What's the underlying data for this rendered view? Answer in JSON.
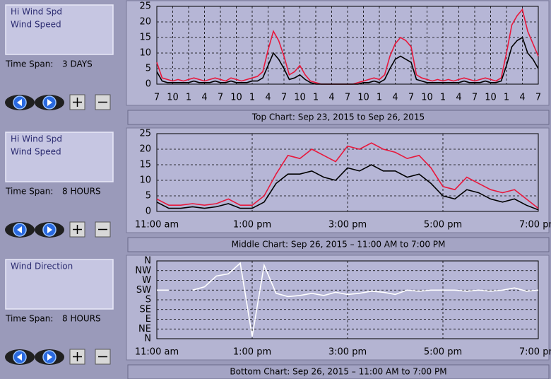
{
  "chart_data": [
    {
      "type": "line",
      "caption": "Top Chart:  Sep 23, 2015  to  Sep 26, 2015",
      "grid": true,
      "x": [
        0,
        1,
        2,
        3,
        4,
        5,
        6,
        7,
        8,
        9,
        10,
        11,
        12,
        13,
        14,
        15,
        16,
        17,
        18,
        19,
        20,
        21,
        22,
        23,
        24,
        25,
        26,
        27,
        28,
        29,
        30,
        31,
        32,
        33,
        34,
        35,
        36,
        37,
        38,
        39,
        40,
        41,
        42,
        43,
        44,
        45,
        46,
        47,
        48,
        49,
        50,
        51,
        52,
        53,
        54,
        55,
        56,
        57,
        58,
        59,
        60,
        61,
        62,
        63,
        64,
        65,
        66,
        67,
        68,
        69,
        70,
        71,
        72
      ],
      "series": [
        {
          "name": "Hi Wind Spd",
          "color": "#e8183c",
          "values": [
            7,
            2,
            1.5,
            1,
            1.5,
            1,
            1.5,
            2,
            1.5,
            1,
            1.5,
            2,
            1.5,
            1,
            2,
            1.5,
            1,
            1.5,
            2,
            2.5,
            4,
            11,
            17,
            14,
            9,
            3,
            4,
            6,
            3,
            1,
            0.5,
            0,
            0,
            0,
            0,
            0,
            0,
            0,
            0.5,
            1,
            1.5,
            2,
            1.5,
            3,
            9,
            13,
            15,
            14,
            12,
            3,
            2,
            1.5,
            1,
            1.5,
            1,
            1.5,
            1,
            1.5,
            2,
            1.5,
            1,
            1.5,
            2,
            1.5,
            1,
            2,
            10,
            19,
            22,
            24,
            17,
            13,
            9
          ]
        },
        {
          "name": "Wind Speed",
          "color": "#000000",
          "values": [
            4,
            1,
            0.5,
            0.5,
            0.5,
            0.5,
            0.5,
            1,
            0.5,
            0.5,
            0.5,
            1,
            0.5,
            0.5,
            1,
            0.5,
            0.5,
            0.5,
            1,
            1,
            2,
            6,
            10,
            8,
            5,
            1.5,
            2,
            3,
            1.5,
            0.5,
            0,
            0,
            0,
            0,
            0,
            0,
            0,
            0,
            0,
            0.5,
            0.5,
            1,
            0.5,
            1.5,
            5,
            8,
            9,
            8,
            7,
            1.5,
            1,
            0.5,
            0.5,
            0.5,
            0.5,
            0.5,
            0.5,
            0.5,
            1,
            0.5,
            0.5,
            0.5,
            1,
            0.5,
            0.5,
            1,
            6,
            12,
            14,
            15,
            10,
            8,
            5
          ]
        }
      ],
      "xlim": [
        0,
        72
      ],
      "xticks": [
        {
          "value": 0,
          "label": "7"
        },
        {
          "value": 3,
          "label": "10"
        },
        {
          "value": 6,
          "label": "1"
        },
        {
          "value": 9,
          "label": "4"
        },
        {
          "value": 12,
          "label": "7"
        },
        {
          "value": 15,
          "label": "10"
        },
        {
          "value": 18,
          "label": "1"
        },
        {
          "value": 21,
          "label": "4"
        },
        {
          "value": 24,
          "label": "7"
        },
        {
          "value": 27,
          "label": "10"
        },
        {
          "value": 30,
          "label": "1"
        },
        {
          "value": 33,
          "label": "4"
        },
        {
          "value": 36,
          "label": "7"
        },
        {
          "value": 39,
          "label": "10"
        },
        {
          "value": 42,
          "label": "1"
        },
        {
          "value": 45,
          "label": "4"
        },
        {
          "value": 48,
          "label": "7"
        },
        {
          "value": 51,
          "label": "10"
        },
        {
          "value": 54,
          "label": "1"
        },
        {
          "value": 57,
          "label": "4"
        },
        {
          "value": 60,
          "label": "7"
        },
        {
          "value": 63,
          "label": "10"
        },
        {
          "value": 66,
          "label": "1"
        },
        {
          "value": 69,
          "label": "4"
        },
        {
          "value": 72,
          "label": "7"
        }
      ],
      "ylim": [
        0,
        25
      ],
      "yticks": [
        0,
        5,
        10,
        15,
        20,
        25
      ]
    },
    {
      "type": "line",
      "caption": "Middle Chart:  Sep 26, 2015 – 11:00 AM  to  7:00 PM",
      "grid": true,
      "x": [
        11,
        11.25,
        11.5,
        11.75,
        12,
        12.25,
        12.5,
        12.75,
        13,
        13.25,
        13.5,
        13.75,
        14,
        14.25,
        14.5,
        14.75,
        15,
        15.25,
        15.5,
        15.75,
        16,
        16.25,
        16.5,
        16.75,
        17,
        17.25,
        17.5,
        17.75,
        18,
        18.25,
        18.5,
        18.75,
        19
      ],
      "series": [
        {
          "name": "Hi Wind Spd",
          "color": "#e8183c",
          "values": [
            4,
            2,
            2,
            2.5,
            2,
            2.5,
            4,
            2,
            2,
            5,
            12,
            18,
            17,
            20,
            18,
            16,
            21,
            20,
            22,
            20,
            19,
            17,
            18,
            14,
            8,
            7,
            11,
            9,
            7,
            6,
            7,
            4,
            1
          ]
        },
        {
          "name": "Wind Speed",
          "color": "#000000",
          "values": [
            3,
            1,
            1,
            1.5,
            1,
            1.5,
            2.5,
            1,
            1,
            3,
            9,
            12,
            12,
            13,
            11,
            10,
            14,
            13,
            15,
            13,
            13,
            11,
            12,
            9,
            5,
            4,
            7,
            6,
            4,
            3,
            4,
            2,
            0.5
          ]
        }
      ],
      "xlim": [
        11,
        19
      ],
      "xticks": [
        {
          "value": 11,
          "label": "11:00 am"
        },
        {
          "value": 13,
          "label": "1:00 pm"
        },
        {
          "value": 15,
          "label": "3:00 pm"
        },
        {
          "value": 17,
          "label": "5:00 pm"
        },
        {
          "value": 19,
          "label": "7:00 pm"
        }
      ],
      "ylim": [
        0,
        25
      ],
      "yticks": [
        0,
        5,
        10,
        15,
        20,
        25
      ]
    },
    {
      "type": "line",
      "caption": "Bottom Chart:  Sep 26, 2015 – 11:00 AM  to  7:00 PM",
      "grid": true,
      "x": [
        11,
        11.25,
        11.5,
        11.75,
        12,
        12.25,
        12.5,
        12.75,
        13,
        13.25,
        13.5,
        13.75,
        14,
        14.25,
        14.5,
        14.75,
        15,
        15.25,
        15.5,
        15.75,
        16,
        16.25,
        16.5,
        16.75,
        17,
        17.25,
        17.5,
        17.75,
        18,
        18.25,
        18.5,
        18.75,
        19
      ],
      "series": [
        {
          "name": "Wind Direction",
          "color": "#ffffff",
          "values": [
            225,
            225,
            null,
            225,
            240,
            290,
            300,
            350,
            10,
            340,
            210,
            195,
            200,
            210,
            200,
            215,
            205,
            210,
            220,
            215,
            205,
            225,
            220,
            225,
            225,
            225,
            220,
            225,
            220,
            225,
            235,
            220,
            225
          ]
        }
      ],
      "xlim": [
        11,
        19
      ],
      "xticks": [
        {
          "value": 11,
          "label": "11:00 am"
        },
        {
          "value": 13,
          "label": "1:00 pm"
        },
        {
          "value": 15,
          "label": "3:00 pm"
        },
        {
          "value": 17,
          "label": "5:00 pm"
        },
        {
          "value": 19,
          "label": "7:00 pm"
        }
      ],
      "ylim": [
        0,
        360
      ],
      "yticks": [
        {
          "value": 360,
          "label": "N"
        },
        {
          "value": 315,
          "label": "NW"
        },
        {
          "value": 270,
          "label": "W"
        },
        {
          "value": 225,
          "label": "SW"
        },
        {
          "value": 180,
          "label": "S"
        },
        {
          "value": 135,
          "label": "SE"
        },
        {
          "value": 90,
          "label": "E"
        },
        {
          "value": 45,
          "label": "NE"
        },
        {
          "value": 0,
          "label": "N"
        }
      ]
    }
  ],
  "panels": [
    {
      "time_span_label": "Time Span:",
      "time_span": "3 DAYS"
    },
    {
      "time_span_label": "Time Span:",
      "time_span": "8 HOURS"
    },
    {
      "time_span_label": "Time Span:",
      "time_span": "8 HOURS"
    }
  ]
}
